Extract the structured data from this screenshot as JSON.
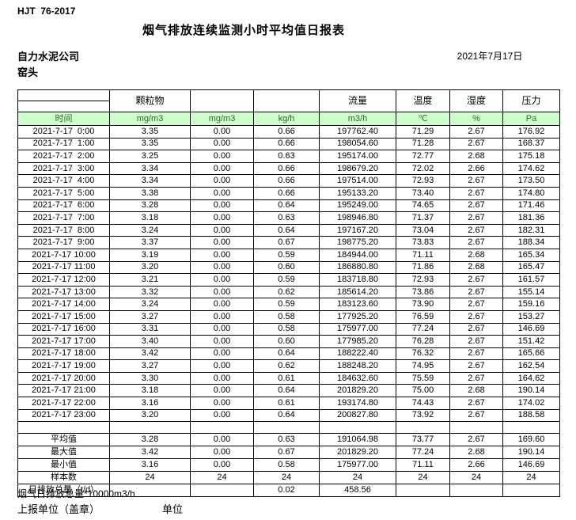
{
  "page": {
    "standard": "HJT  76-2017",
    "title": "烟气排放连续监测小时平均值日报表",
    "company": "自力水泥公司",
    "location": "窑头",
    "date": "2021年7月17日"
  },
  "colors": {
    "header_green_bg": "#ccffcc",
    "header_green_text": "#336633",
    "border": "#000000"
  },
  "table": {
    "time_header": "时间",
    "group_headers": [
      "颗粒物",
      "",
      "",
      "流量",
      "温度",
      "湿度",
      "压力"
    ],
    "units": [
      "mg/m3",
      "mg/m3",
      "kg/h",
      "m3/h",
      "℃",
      "%",
      "Pa"
    ],
    "rows": [
      {
        "time": "2021-7-17  0:00",
        "values": [
          "3.35",
          "0.00",
          "0.66",
          "197762.40",
          "71.29",
          "2.67",
          "176.92"
        ]
      },
      {
        "time": "2021-7-17  1:00",
        "values": [
          "3.35",
          "0.00",
          "0.66",
          "198054.60",
          "71.28",
          "2.67",
          "168.37"
        ]
      },
      {
        "time": "2021-7-17  2:00",
        "values": [
          "3.25",
          "0.00",
          "0.63",
          "195174.00",
          "72.77",
          "2.68",
          "175.18"
        ]
      },
      {
        "time": "2021-7-17  3:00",
        "values": [
          "3.34",
          "0.00",
          "0.66",
          "198679.20",
          "72.02",
          "2.66",
          "174.62"
        ]
      },
      {
        "time": "2021-7-17  4:00",
        "values": [
          "3.34",
          "0.00",
          "0.66",
          "197514.00",
          "72.93",
          "2.67",
          "173.50"
        ]
      },
      {
        "time": "2021-7-17  5:00",
        "values": [
          "3.38",
          "0.00",
          "0.66",
          "195133.20",
          "73.40",
          "2.67",
          "174.80"
        ]
      },
      {
        "time": "2021-7-17  6:00",
        "values": [
          "3.28",
          "0.00",
          "0.64",
          "195249.00",
          "74.65",
          "2.67",
          "171.46"
        ]
      },
      {
        "time": "2021-7-17  7:00",
        "values": [
          "3.18",
          "0.00",
          "0.63",
          "198946.80",
          "71.37",
          "2.67",
          "181.36"
        ]
      },
      {
        "time": "2021-7-17  8:00",
        "values": [
          "3.24",
          "0.00",
          "0.64",
          "197167.20",
          "73.04",
          "2.67",
          "182.31"
        ]
      },
      {
        "time": "2021-7-17  9:00",
        "values": [
          "3.37",
          "0.00",
          "0.67",
          "198775.20",
          "73.83",
          "2.67",
          "188.34"
        ]
      },
      {
        "time": "2021-7-17 10:00",
        "values": [
          "3.19",
          "0.00",
          "0.59",
          "184944.00",
          "71.11",
          "2.68",
          "165.34"
        ]
      },
      {
        "time": "2021-7-17 11:00",
        "values": [
          "3.20",
          "0.00",
          "0.60",
          "186880.80",
          "71.86",
          "2.68",
          "165.47"
        ]
      },
      {
        "time": "2021-7-17 12:00",
        "values": [
          "3.21",
          "0.00",
          "0.59",
          "183718.80",
          "72.93",
          "2.67",
          "161.57"
        ]
      },
      {
        "time": "2021-7-17 13:00",
        "values": [
          "3.32",
          "0.00",
          "0.62",
          "185614.20",
          "73.86",
          "2.67",
          "155.14"
        ]
      },
      {
        "time": "2021-7-17 14:00",
        "values": [
          "3.24",
          "0.00",
          "0.59",
          "183123.60",
          "73.90",
          "2.67",
          "159.16"
        ]
      },
      {
        "time": "2021-7-17 15:00",
        "values": [
          "3.27",
          "0.00",
          "0.58",
          "177925.20",
          "76.59",
          "2.67",
          "153.27"
        ]
      },
      {
        "time": "2021-7-17 16:00",
        "values": [
          "3.31",
          "0.00",
          "0.58",
          "175977.00",
          "77.24",
          "2.67",
          "146.69"
        ]
      },
      {
        "time": "2021-7-17 17:00",
        "values": [
          "3.40",
          "0.00",
          "0.60",
          "177985.20",
          "76.28",
          "2.67",
          "151.42"
        ]
      },
      {
        "time": "2021-7-17 18:00",
        "values": [
          "3.42",
          "0.00",
          "0.64",
          "188222.40",
          "76.32",
          "2.67",
          "165.66"
        ]
      },
      {
        "time": "2021-7-17 19:00",
        "values": [
          "3.27",
          "0.00",
          "0.62",
          "188248.20",
          "74.95",
          "2.67",
          "162.54"
        ]
      },
      {
        "time": "2021-7-17 20:00",
        "values": [
          "3.30",
          "0.00",
          "0.61",
          "184632.60",
          "75.59",
          "2.67",
          "164.62"
        ]
      },
      {
        "time": "2021-7-17 21:00",
        "values": [
          "3.18",
          "0.00",
          "0.64",
          "201829.20",
          "75.00",
          "2.68",
          "190.14"
        ]
      },
      {
        "time": "2021-7-17 22:00",
        "values": [
          "3.16",
          "0.00",
          "0.61",
          "193174.80",
          "74.43",
          "2.67",
          "174.02"
        ]
      },
      {
        "time": "2021-7-17 23:00",
        "values": [
          "3.20",
          "0.00",
          "0.64",
          "200827.80",
          "73.92",
          "2.67",
          "188.58"
        ]
      }
    ],
    "summary": [
      {
        "label": "平均值",
        "values": [
          "3.28",
          "0.00",
          "0.63",
          "191064.98",
          "73.77",
          "2.67",
          "169.60"
        ]
      },
      {
        "label": "最大值",
        "values": [
          "3.42",
          "0.00",
          "0.67",
          "201829.20",
          "77.24",
          "2.68",
          "190.14"
        ]
      },
      {
        "label": "最小值",
        "values": [
          "3.16",
          "0.00",
          "0.58",
          "175977.00",
          "71.11",
          "2.66",
          "146.69"
        ]
      },
      {
        "label": "样本数",
        "values": [
          "24",
          "24",
          "24",
          "24",
          "24",
          "24",
          "24"
        ]
      },
      {
        "label": "日排放总量（t/d）",
        "values": [
          "",
          "",
          "0.02",
          "458.56",
          "",
          "",
          ""
        ]
      }
    ]
  },
  "footer": {
    "note": "烟气日排放总量*10000m3/h",
    "report_unit": "上报单位（盖章）",
    "unit_label": "单位"
  }
}
